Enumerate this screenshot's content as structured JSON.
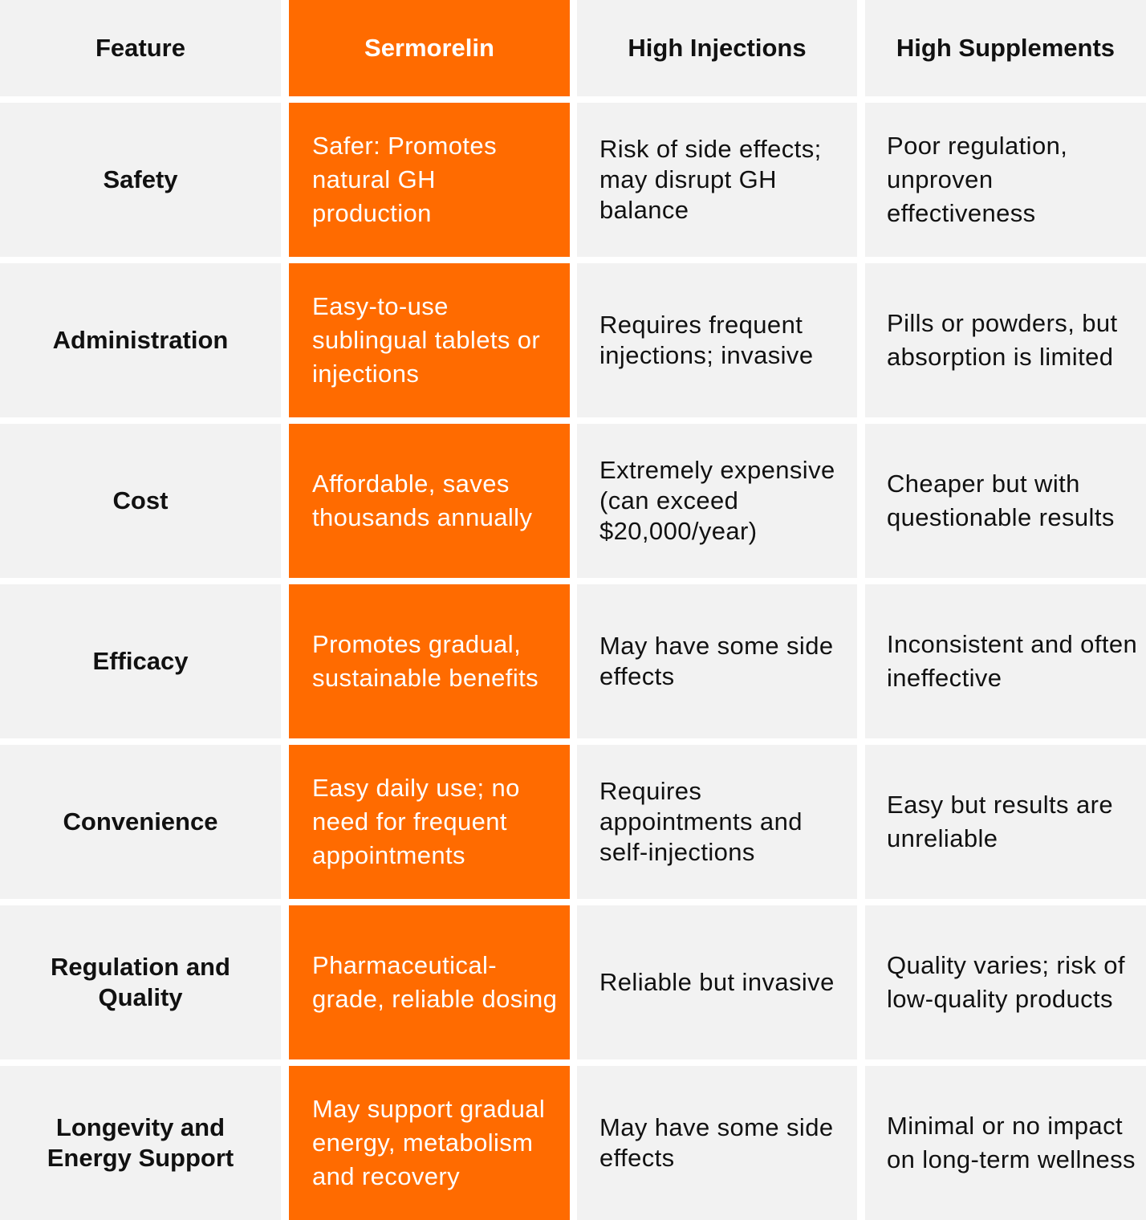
{
  "colors": {
    "accent": "#ff6b00",
    "cell_background": "#f2f2f2",
    "text": "#111111",
    "accent_text": "#ffffff"
  },
  "headers": {
    "feature": "Feature",
    "sermorelin": "Sermorelin",
    "injections": "High Injections",
    "supplements": "High Supplements"
  },
  "rows": [
    {
      "feature": "Safety",
      "sermorelin": "Safer: Promotes natural GH production",
      "injections": "Risk of side effects; may disrupt GH balance",
      "supplements": "Poor regulation, unproven effectiveness"
    },
    {
      "feature": "Administration",
      "sermorelin": "Easy-to-use sublingual tablets or injections",
      "injections": "Requires frequent injections; invasive",
      "supplements": "Pills or powders, but absorption is limited"
    },
    {
      "feature": "Cost",
      "sermorelin": "Affordable, saves thousands annually",
      "injections": "Extremely expensive (can exceed $20,000/year)",
      "supplements": "Cheaper but with questionable results"
    },
    {
      "feature": "Efficacy",
      "sermorelin": "Promotes gradual, sustainable benefits",
      "injections": "May have some side effects",
      "supplements": "Inconsistent and often ineffective"
    },
    {
      "feature": "Convenience",
      "sermorelin": "Easy daily use; no need for frequent appointments",
      "injections": "Requires appointments and self-injections",
      "supplements": "Easy but results are unreliable"
    },
    {
      "feature": "Regulation and Quality",
      "sermorelin": "Pharmaceutical-grade, reliable dosing",
      "injections": "Reliable but invasive",
      "supplements": "Quality varies; risk of low-quality products"
    },
    {
      "feature": "Longevity and Energy Support",
      "sermorelin": "May support gradual energy, metabolism and recovery",
      "injections": "May have some side effects",
      "supplements": "Minimal or no impact on long-term wellness"
    }
  ]
}
